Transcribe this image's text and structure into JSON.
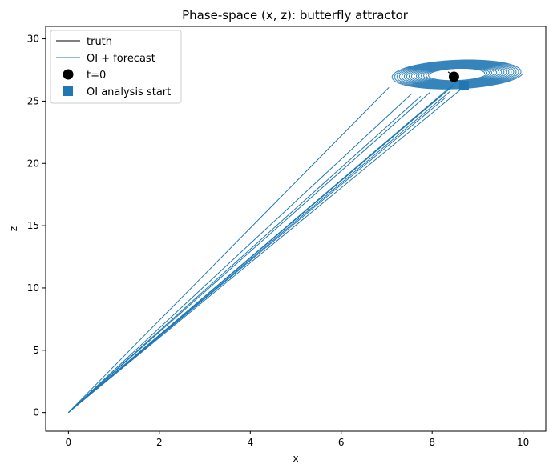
{
  "chart_data": {
    "type": "line",
    "title": "Phase-space (x, z): butterfly attractor",
    "xlabel": "x",
    "ylabel": "z",
    "xlim": [
      -0.5,
      10.5
    ],
    "ylim": [
      -1.5,
      31
    ],
    "xticks": [
      0,
      2,
      4,
      6,
      8,
      10
    ],
    "yticks": [
      0,
      5,
      10,
      15,
      20,
      25,
      30
    ],
    "grid": false,
    "legend_position": "upper-left",
    "series": [
      {
        "name": "truth",
        "kind": "line",
        "color": "#000000",
        "points": [
          [
            8.35,
            27.35
          ],
          [
            8.5,
            26.95
          ]
        ]
      },
      {
        "name": "OI + forecast",
        "kind": "line",
        "color": "#1f77b4",
        "spiral": {
          "center": [
            8.55,
            27.0
          ],
          "rx_start": 0.6,
          "rx_end": 1.45,
          "ry_start": 0.85,
          "ry_end": 2.15,
          "turns": 16,
          "tilt": 0.12,
          "z_offset": 0.15
        },
        "rays": [
          [
            [
              0,
              0
            ],
            [
              7.05,
              26.1
            ]
          ],
          [
            [
              0,
              0
            ],
            [
              7.55,
              25.6
            ]
          ],
          [
            [
              0,
              0
            ],
            [
              7.75,
              25.4
            ]
          ],
          [
            [
              0,
              0
            ],
            [
              7.95,
              25.7
            ]
          ],
          [
            [
              0,
              0
            ],
            [
              8.2,
              25.5
            ]
          ],
          [
            [
              0,
              0
            ],
            [
              8.45,
              26.2
            ]
          ],
          [
            [
              0,
              0
            ],
            [
              8.55,
              26.6
            ]
          ],
          [
            [
              0,
              0
            ],
            [
              8.65,
              26.0
            ]
          ],
          [
            [
              0,
              0
            ],
            [
              8.3,
              25.3
            ]
          ],
          [
            [
              0,
              0
            ],
            [
              8.4,
              25.8
            ]
          ]
        ]
      },
      {
        "name": "t=0",
        "kind": "marker",
        "marker": "circle",
        "color": "#000000",
        "point": [
          8.48,
          26.95
        ]
      },
      {
        "name": "OI analysis start",
        "kind": "marker",
        "marker": "square",
        "color": "#1f77b4",
        "point": [
          8.7,
          26.25
        ]
      }
    ]
  }
}
